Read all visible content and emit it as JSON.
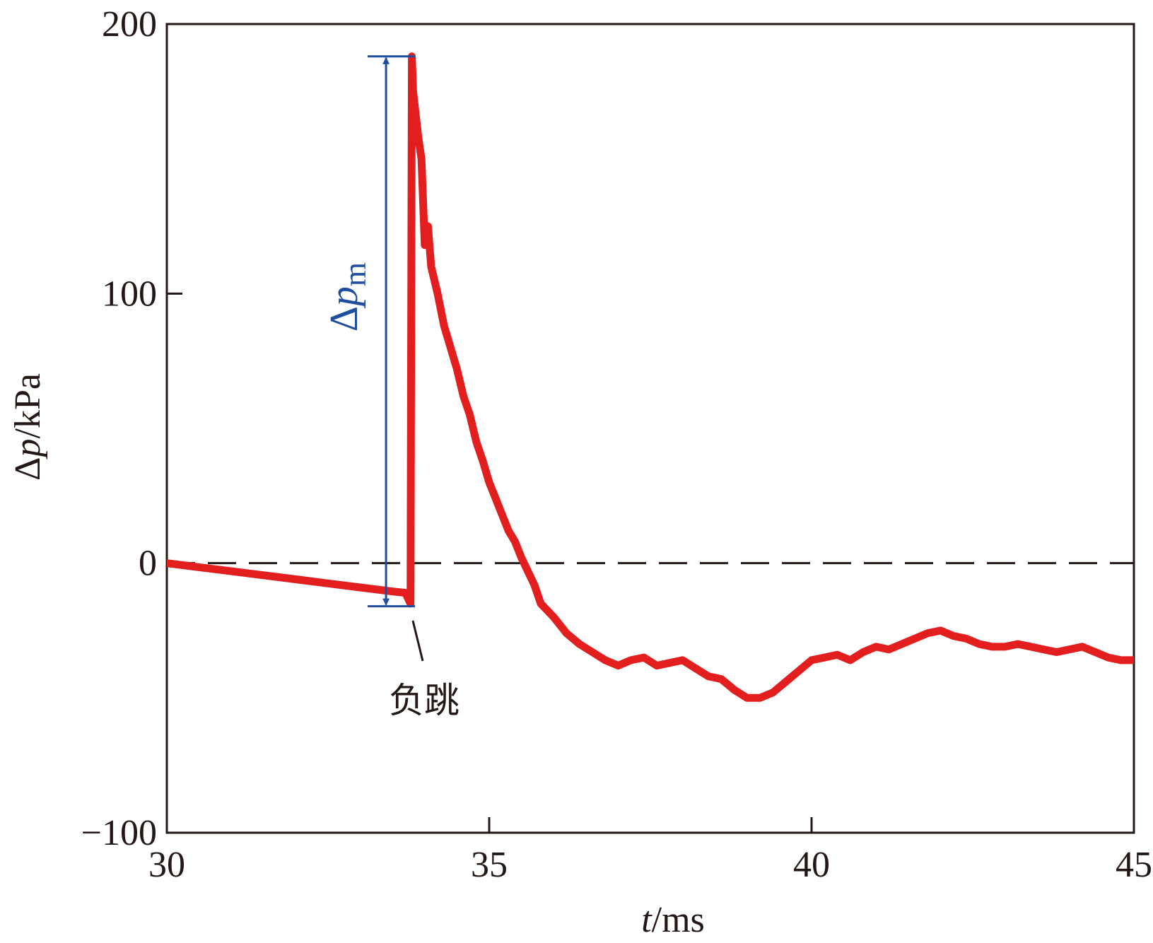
{
  "chart_data": {
    "type": "line",
    "xlabel_var": "t",
    "xlabel_unit": "/ms",
    "ylabel_prefix": "Δ",
    "ylabel_var": "p",
    "ylabel_unit": "/kPa",
    "xlim": [
      30,
      45
    ],
    "ylim": [
      -100,
      200
    ],
    "xticks": [
      30,
      35,
      40,
      45
    ],
    "yticks": [
      -100,
      0,
      100,
      200
    ],
    "x_tick_labels": [
      "30",
      "35",
      "40",
      "45"
    ],
    "y_tick_labels": [
      "−100",
      "0",
      "100",
      "200"
    ],
    "grid": false,
    "reference_line": {
      "y": 0,
      "style": "dashed"
    },
    "series": [
      {
        "color": "#e31e1e",
        "x": [
          30.0,
          30.5,
          31.0,
          31.5,
          32.0,
          32.5,
          33.0,
          33.5,
          33.7,
          33.78,
          33.8,
          33.82,
          33.9,
          33.95,
          34.0,
          34.05,
          34.1,
          34.2,
          34.3,
          34.4,
          34.5,
          34.6,
          34.7,
          34.8,
          34.9,
          35.0,
          35.1,
          35.2,
          35.3,
          35.4,
          35.5,
          35.6,
          35.7,
          35.8,
          36.0,
          36.2,
          36.4,
          36.6,
          36.8,
          37.0,
          37.2,
          37.4,
          37.6,
          37.8,
          38.0,
          38.2,
          38.4,
          38.6,
          38.8,
          39.0,
          39.2,
          39.4,
          39.6,
          39.8,
          40.0,
          40.2,
          40.4,
          40.6,
          40.8,
          41.0,
          41.2,
          41.4,
          41.6,
          41.8,
          42.0,
          42.2,
          42.4,
          42.6,
          42.8,
          43.0,
          43.2,
          43.4,
          43.6,
          43.8,
          44.0,
          44.2,
          44.4,
          44.6,
          44.8,
          45.0
        ],
        "y": [
          0,
          -1.5,
          -3,
          -4.5,
          -6,
          -7.5,
          -9,
          -10.5,
          -11,
          -15,
          188,
          175,
          158,
          150,
          118,
          125,
          110,
          100,
          88,
          80,
          72,
          62,
          55,
          45,
          38,
          30,
          24,
          18,
          12,
          8,
          2,
          -3,
          -8,
          -15,
          -20,
          -26,
          -30,
          -33,
          -36,
          -38,
          -36,
          -35,
          -38,
          -37,
          -36,
          -39,
          -42,
          -43,
          -47,
          -50,
          -50,
          -48,
          -44,
          -40,
          -36,
          -35,
          -34,
          -36,
          -33,
          -31,
          -32,
          -30,
          -28,
          -26,
          -25,
          -27,
          -28,
          -30,
          -31,
          -31,
          -30,
          -31,
          -32,
          -33,
          -32,
          -31,
          -33,
          -35,
          -36,
          -36
        ]
      }
    ],
    "annotations": {
      "peak_label_prefix": "Δ",
      "peak_label_var": "p",
      "peak_label_sub": "m",
      "peak_top": 188,
      "peak_bottom": -16,
      "peak_x": 33.4,
      "neg_jump_label": "负跳"
    }
  }
}
